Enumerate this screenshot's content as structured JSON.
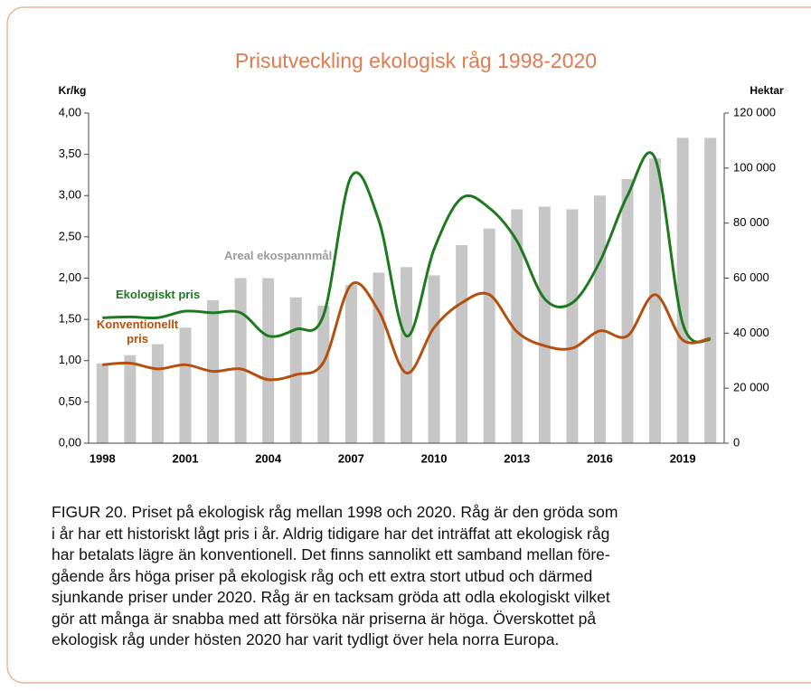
{
  "chart_data": {
    "type": "bar-line",
    "title": "Prisutveckling ekologisk råg 1998-2020",
    "ylabel": "Kr/kg",
    "y2label": "Hektar",
    "categories": [
      "1998",
      null,
      null,
      "2001",
      null,
      null,
      "2004",
      null,
      null,
      "2007",
      null,
      null,
      "2010",
      null,
      null,
      "2013",
      null,
      null,
      "2016",
      null,
      null,
      "2019",
      null
    ],
    "series": [
      {
        "name": "Areal ekospannmål",
        "type": "bar",
        "axis": "y2",
        "color": "#c6c6c6",
        "values": [
          29000,
          32000,
          36000,
          42000,
          52000,
          60000,
          60000,
          53000,
          50000,
          57500,
          62000,
          64000,
          61000,
          72000,
          78000,
          85000,
          86000,
          85000,
          90000,
          96000,
          103500,
          111000,
          111000
        ]
      },
      {
        "name": "Ekologiskt pris",
        "type": "line",
        "color": "#1e7a1e",
        "values": [
          1.52,
          1.53,
          1.52,
          1.6,
          1.58,
          1.58,
          1.3,
          1.38,
          1.55,
          3.23,
          2.7,
          1.3,
          2.35,
          2.97,
          2.85,
          2.45,
          1.75,
          1.7,
          2.2,
          3.0,
          3.45,
          1.45,
          1.25
        ]
      },
      {
        "name": "Konventionellt pris",
        "type": "line",
        "color": "#b4500f",
        "values": [
          0.95,
          0.97,
          0.9,
          0.95,
          0.87,
          0.9,
          0.77,
          0.83,
          0.98,
          1.92,
          1.6,
          0.85,
          1.4,
          1.7,
          1.8,
          1.35,
          1.18,
          1.15,
          1.36,
          1.3,
          1.8,
          1.25,
          1.27
        ]
      }
    ],
    "ylim": [
      0,
      4
    ],
    "yticks": [
      {
        "value": 0,
        "label": "0,00"
      },
      {
        "value": 0.5,
        "label": "0,50"
      },
      {
        "value": 1,
        "label": "1,00"
      },
      {
        "value": 1.5,
        "label": "1,50"
      },
      {
        "value": 2,
        "label": "2,00"
      },
      {
        "value": 2.5,
        "label": "2,50"
      },
      {
        "value": 3,
        "label": "3,00"
      },
      {
        "value": 3.5,
        "label": "3,50"
      },
      {
        "value": 4,
        "label": "4,00"
      }
    ],
    "y2lim": [
      0,
      120000
    ],
    "y2ticks": [
      0,
      {
        "value": 20000,
        "label": "20 000"
      },
      {
        "value": 40000,
        "label": "40 000"
      },
      {
        "value": 60000,
        "label": "60 000"
      },
      {
        "value": 80000,
        "label": "80 000"
      },
      {
        "value": 100000,
        "label": "100 000"
      },
      {
        "value": 120000,
        "label": "120 000"
      }
    ],
    "grid": false
  },
  "caption": [
    "FIGUR 20. Priset på ekologisk råg mellan 1998 och 2020. Råg är den gröda som",
    "i år har ett historiskt lågt pris i år. Aldrig tidigare har det inträffat att ekologisk råg",
    "har betalats lägre än konventionell. Det finns sannolikt ett samband mellan före-",
    "gående års höga priser på ekologisk råg och ett extra stort utbud och därmed",
    "sjunkande priser under 2020. Råg är en tacksam gröda att odla ekologiskt vilket",
    "gör att många är snabba med att försöka när priserna är höga. Överskottet på",
    "ekologisk råg under hösten 2020 har varit tydligt över hela norra Europa."
  ]
}
